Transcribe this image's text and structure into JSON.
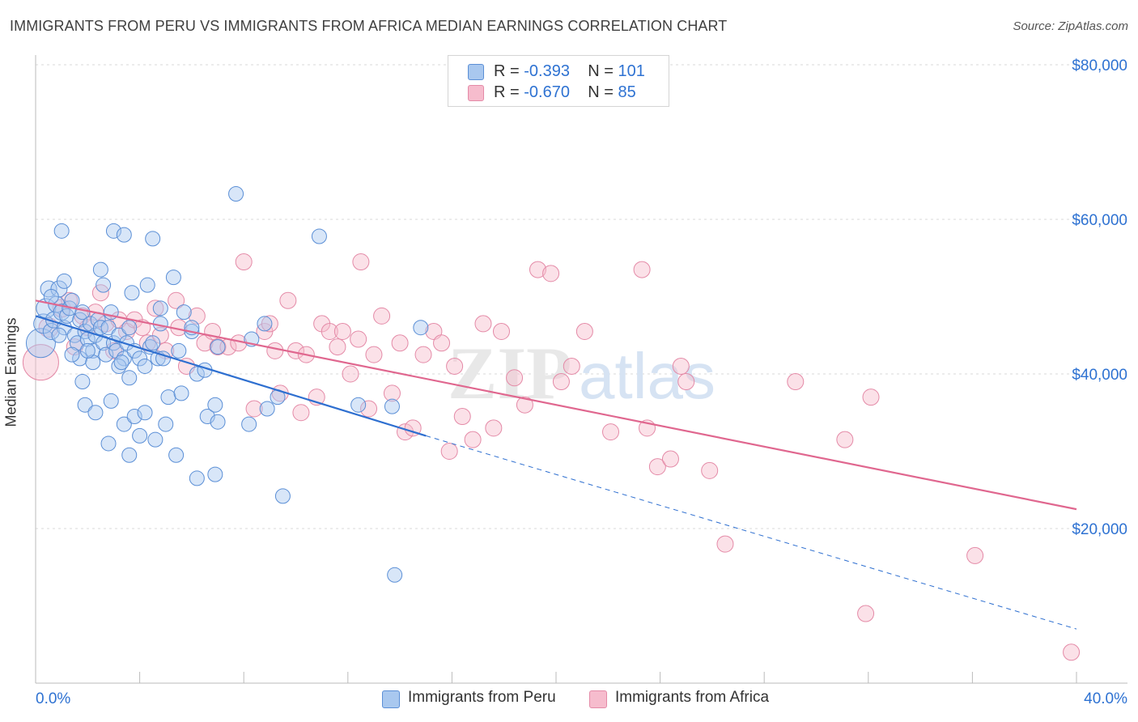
{
  "header": {
    "title": "IMMIGRANTS FROM PERU VS IMMIGRANTS FROM AFRICA MEDIAN EARNINGS CORRELATION CHART",
    "source": "Source: ZipAtlas.com"
  },
  "legend": {
    "rows": [
      {
        "r_label": "R =",
        "r_value": "-0.393",
        "n_label": "N =",
        "n_value": "101"
      },
      {
        "r_label": "R =",
        "r_value": "-0.670",
        "n_label": "N =",
        "n_value": "85"
      }
    ]
  },
  "bottom_legend": {
    "peru": "Immigrants from Peru",
    "africa": "Immigrants from Africa"
  },
  "colors": {
    "peru_fill": "#a9c8ef",
    "peru_stroke": "#5b8fd6",
    "peru_line": "#2e6fd0",
    "africa_fill": "#f6bccd",
    "africa_stroke": "#e48aa7",
    "africa_line": "#e0678f",
    "axis_text": "#2e72d2",
    "grid": "#d9d9d9"
  },
  "chart_data": {
    "type": "scatter",
    "title": "IMMIGRANTS FROM PERU VS IMMIGRANTS FROM AFRICA MEDIAN EARNINGS CORRELATION CHART",
    "xlabel": "",
    "ylabel": "Median Earnings",
    "xlim": [
      0,
      40
    ],
    "ylim": [
      0,
      80000
    ],
    "x_tick_labels": [
      "0.0%",
      "40.0%"
    ],
    "y_ticks": [
      20000,
      40000,
      60000,
      80000
    ],
    "y_tick_labels": [
      "$20,000",
      "$40,000",
      "$60,000",
      "$80,000"
    ],
    "grid": true,
    "watermark": "ZIPatlas",
    "series": [
      {
        "name": "Immigrants from Peru",
        "R": -0.393,
        "N": 101,
        "trend": {
          "x0": 0,
          "y0": 47500,
          "x1": 15,
          "y1": 32000,
          "dashed_to_x": 40,
          "dashed_to_y": 7000
        },
        "points": [
          [
            0.2,
            44000,
            18
          ],
          [
            0.3,
            46500,
            12
          ],
          [
            0.4,
            48500,
            12
          ],
          [
            0.5,
            51000,
            10
          ],
          [
            0.6,
            45500,
            10
          ],
          [
            0.7,
            47000,
            10
          ],
          [
            0.8,
            49000,
            10
          ],
          [
            0.9,
            51000,
            10
          ],
          [
            1.0,
            48000,
            10
          ],
          [
            1.1,
            46000,
            9
          ],
          [
            1.2,
            47500,
            9
          ],
          [
            1.3,
            48500,
            9
          ],
          [
            1.4,
            49500,
            9
          ],
          [
            1.5,
            45000,
            9
          ],
          [
            1.6,
            44000,
            9
          ],
          [
            1.7,
            47000,
            9
          ],
          [
            1.8,
            48000,
            9
          ],
          [
            1.9,
            45500,
            9
          ],
          [
            2.0,
            44500,
            9
          ],
          [
            2.1,
            46500,
            9
          ],
          [
            2.2,
            43000,
            9
          ],
          [
            2.3,
            45000,
            9
          ],
          [
            2.4,
            47000,
            9
          ],
          [
            2.5,
            46000,
            9
          ],
          [
            2.6,
            44000,
            9
          ],
          [
            2.7,
            42500,
            9
          ],
          [
            2.8,
            46000,
            9
          ],
          [
            2.9,
            48000,
            9
          ],
          [
            3.0,
            44000,
            9
          ],
          [
            3.1,
            43000,
            9
          ],
          [
            3.2,
            45000,
            9
          ],
          [
            3.4,
            42000,
            9
          ],
          [
            3.5,
            44000,
            9
          ],
          [
            3.6,
            46000,
            9
          ],
          [
            3.8,
            43000,
            9
          ],
          [
            4.0,
            42000,
            9
          ],
          [
            4.2,
            41000,
            9
          ],
          [
            4.4,
            43500,
            9
          ],
          [
            4.5,
            44000,
            9
          ],
          [
            4.7,
            42000,
            9
          ],
          [
            1.0,
            58500,
            9
          ],
          [
            2.5,
            53500,
            9
          ],
          [
            2.6,
            51500,
            9
          ],
          [
            3.0,
            58500,
            9
          ],
          [
            3.4,
            58000,
            9
          ],
          [
            3.7,
            50500,
            9
          ],
          [
            4.3,
            51500,
            9
          ],
          [
            4.5,
            57500,
            9
          ],
          [
            4.8,
            48500,
            9
          ],
          [
            5.3,
            52500,
            9
          ],
          [
            5.7,
            48000,
            9
          ],
          [
            6.0,
            45500,
            9
          ],
          [
            6.2,
            40000,
            9
          ],
          [
            7.7,
            63300,
            9
          ],
          [
            8.3,
            44500,
            9
          ],
          [
            8.8,
            46500,
            9
          ],
          [
            10.9,
            57800,
            9
          ],
          [
            14.8,
            46000,
            9
          ],
          [
            1.7,
            42000,
            9
          ],
          [
            1.8,
            39000,
            9
          ],
          [
            2.2,
            41500,
            9
          ],
          [
            3.2,
            41000,
            9
          ],
          [
            3.6,
            39500,
            9
          ],
          [
            4.9,
            42000,
            9
          ],
          [
            5.1,
            37000,
            9
          ],
          [
            5.6,
            37500,
            9
          ],
          [
            6.5,
            40500,
            9
          ],
          [
            7.0,
            43500,
            9
          ],
          [
            1.9,
            36000,
            9
          ],
          [
            2.3,
            35000,
            9
          ],
          [
            2.9,
            36500,
            9
          ],
          [
            3.4,
            33500,
            9
          ],
          [
            3.8,
            34500,
            9
          ],
          [
            4.0,
            32000,
            9
          ],
          [
            4.2,
            35000,
            9
          ],
          [
            4.6,
            31500,
            9
          ],
          [
            5.0,
            33500,
            9
          ],
          [
            5.4,
            29500,
            9
          ],
          [
            6.6,
            34500,
            9
          ],
          [
            7.0,
            33800,
            9
          ],
          [
            8.2,
            33500,
            9
          ],
          [
            8.9,
            35500,
            9
          ],
          [
            6.9,
            36000,
            9
          ],
          [
            2.8,
            31000,
            9
          ],
          [
            3.6,
            29500,
            9
          ],
          [
            6.2,
            26500,
            9
          ],
          [
            6.9,
            27000,
            9
          ],
          [
            9.5,
            24200,
            9
          ],
          [
            9.3,
            37000,
            9
          ],
          [
            12.4,
            36000,
            9
          ],
          [
            13.7,
            35800,
            9
          ],
          [
            13.8,
            14000,
            9
          ],
          [
            6.0,
            46000,
            9
          ],
          [
            5.5,
            43000,
            9
          ],
          [
            3.3,
            41500,
            9
          ],
          [
            2.0,
            43000,
            9
          ],
          [
            1.4,
            42500,
            9
          ],
          [
            0.9,
            45000,
            9
          ],
          [
            4.8,
            46500,
            9
          ],
          [
            0.6,
            50000,
            9
          ],
          [
            1.1,
            52000,
            9
          ]
        ]
      },
      {
        "name": "Immigrants from Africa",
        "R": -0.67,
        "N": 85,
        "trend": {
          "x0": 0,
          "y0": 49500,
          "x1": 40,
          "y1": 22500
        },
        "points": [
          [
            0.2,
            41500,
            22
          ],
          [
            0.5,
            46000,
            12
          ],
          [
            1.0,
            48500,
            11
          ],
          [
            1.3,
            49500,
            10
          ],
          [
            1.8,
            47500,
            10
          ],
          [
            2.3,
            48000,
            10
          ],
          [
            2.5,
            50500,
            10
          ],
          [
            2.7,
            46500,
            10
          ],
          [
            3.2,
            47000,
            10
          ],
          [
            3.5,
            45500,
            10
          ],
          [
            3.8,
            47000,
            10
          ],
          [
            4.1,
            46000,
            10
          ],
          [
            4.3,
            44000,
            10
          ],
          [
            4.6,
            48500,
            10
          ],
          [
            5.0,
            43000,
            10
          ],
          [
            5.4,
            49500,
            10
          ],
          [
            5.8,
            41000,
            10
          ],
          [
            6.2,
            47500,
            10
          ],
          [
            6.5,
            44000,
            10
          ],
          [
            6.8,
            45500,
            10
          ],
          [
            7.0,
            43500,
            10
          ],
          [
            7.4,
            43500,
            10
          ],
          [
            7.8,
            44000,
            10
          ],
          [
            8.0,
            54500,
            10
          ],
          [
            8.4,
            35500,
            10
          ],
          [
            8.8,
            45500,
            10
          ],
          [
            9.0,
            46500,
            10
          ],
          [
            9.2,
            43000,
            10
          ],
          [
            9.4,
            37500,
            10
          ],
          [
            9.7,
            49500,
            10
          ],
          [
            10.0,
            43000,
            10
          ],
          [
            10.2,
            35000,
            10
          ],
          [
            10.4,
            42500,
            10
          ],
          [
            10.8,
            37000,
            10
          ],
          [
            11.0,
            46500,
            10
          ],
          [
            11.3,
            45500,
            10
          ],
          [
            11.6,
            43500,
            10
          ],
          [
            11.8,
            45500,
            10
          ],
          [
            12.1,
            40000,
            10
          ],
          [
            12.4,
            44500,
            10
          ],
          [
            12.5,
            54500,
            10
          ],
          [
            12.8,
            35500,
            10
          ],
          [
            13.0,
            42500,
            10
          ],
          [
            13.3,
            47500,
            10
          ],
          [
            13.7,
            37500,
            10
          ],
          [
            14.0,
            44000,
            10
          ],
          [
            14.2,
            32500,
            10
          ],
          [
            14.5,
            33000,
            10
          ],
          [
            14.9,
            42500,
            10
          ],
          [
            15.3,
            45500,
            10
          ],
          [
            15.6,
            44000,
            10
          ],
          [
            15.9,
            30000,
            10
          ],
          [
            16.1,
            41000,
            10
          ],
          [
            16.4,
            34500,
            10
          ],
          [
            16.8,
            31500,
            10
          ],
          [
            17.2,
            46500,
            10
          ],
          [
            17.6,
            33000,
            10
          ],
          [
            17.9,
            45500,
            10
          ],
          [
            18.4,
            39500,
            10
          ],
          [
            18.8,
            36000,
            10
          ],
          [
            19.3,
            53500,
            10
          ],
          [
            19.8,
            53000,
            10
          ],
          [
            20.2,
            39000,
            10
          ],
          [
            20.6,
            41000,
            10
          ],
          [
            21.1,
            45500,
            10
          ],
          [
            22.1,
            32500,
            10
          ],
          [
            23.3,
            53500,
            10
          ],
          [
            23.5,
            33000,
            10
          ],
          [
            23.9,
            28000,
            10
          ],
          [
            24.4,
            29000,
            10
          ],
          [
            24.8,
            41000,
            10
          ],
          [
            25.0,
            39000,
            10
          ],
          [
            25.9,
            27500,
            10
          ],
          [
            26.5,
            18000,
            10
          ],
          [
            29.2,
            39000,
            10
          ],
          [
            31.1,
            31500,
            10
          ],
          [
            32.1,
            37000,
            10
          ],
          [
            31.9,
            9000,
            10
          ],
          [
            36.1,
            16500,
            10
          ],
          [
            39.8,
            4000,
            10
          ],
          [
            4.8,
            45000,
            10
          ],
          [
            2.0,
            46000,
            10
          ],
          [
            1.5,
            43500,
            10
          ],
          [
            3.0,
            43000,
            10
          ],
          [
            5.5,
            46000,
            10
          ]
        ]
      }
    ]
  }
}
